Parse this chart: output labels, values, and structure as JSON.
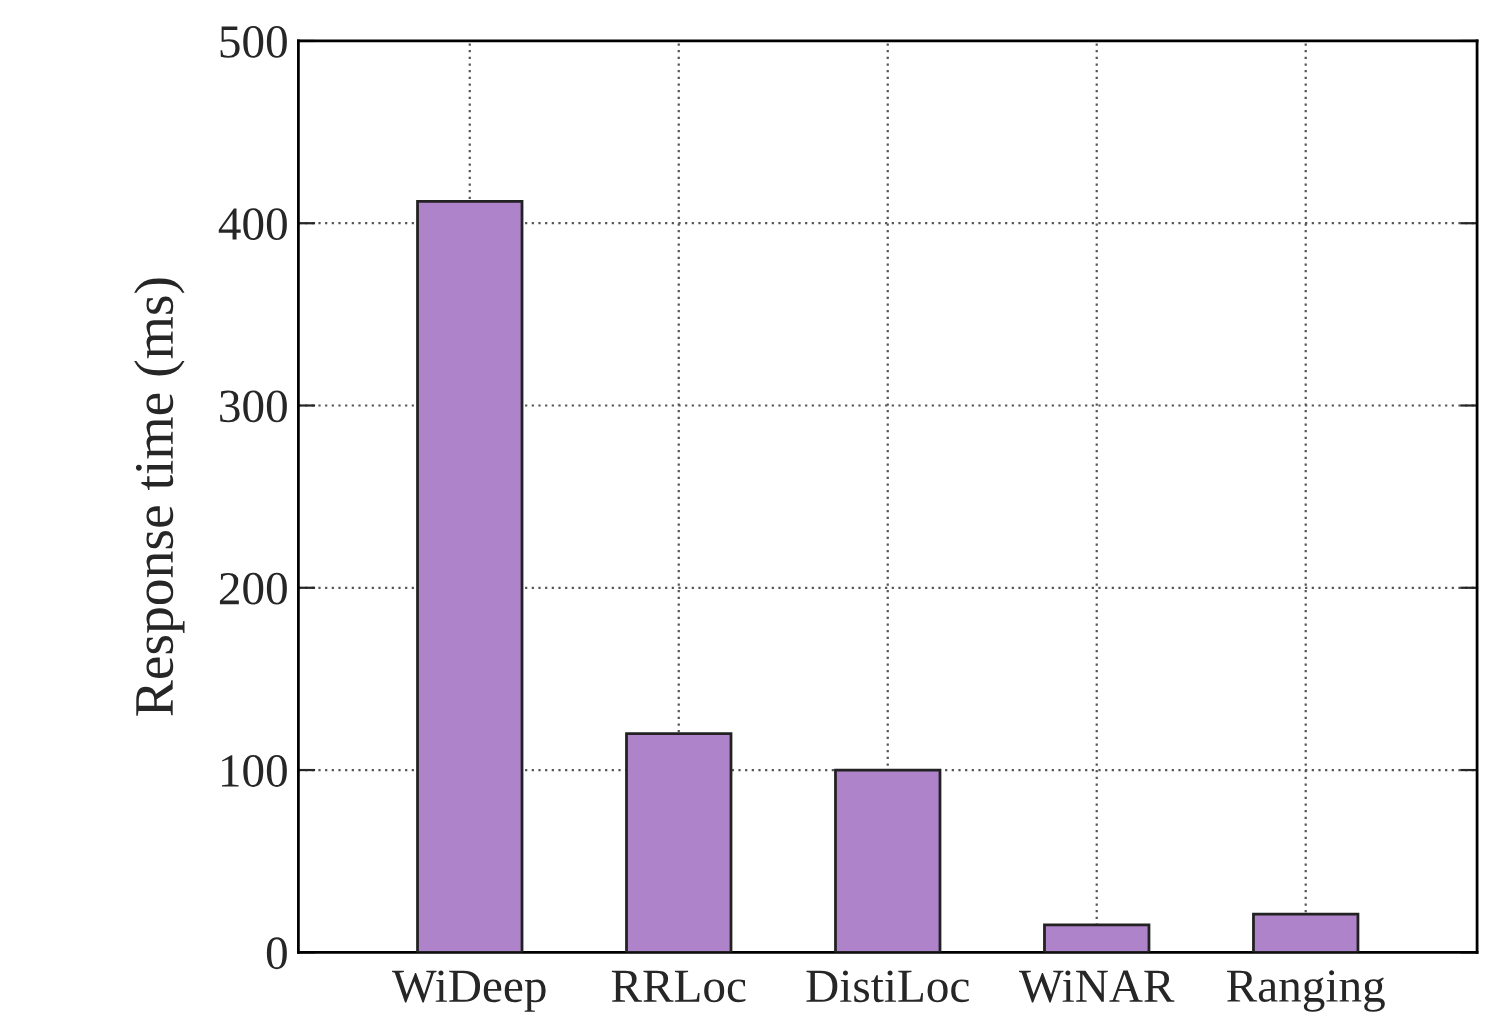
{
  "chart_data": {
    "type": "bar",
    "ylabel": "Response time (ms)",
    "categories": [
      "WiDeep",
      "RRLoc",
      "DistiLoc",
      "WiNAR",
      "Ranging"
    ],
    "values": [
      412,
      120,
      100,
      15,
      21
    ],
    "color": "#af83c9",
    "ylim": [
      0,
      500
    ],
    "yticks": [
      0,
      100,
      200,
      300,
      400,
      500
    ],
    "grid": true
  }
}
